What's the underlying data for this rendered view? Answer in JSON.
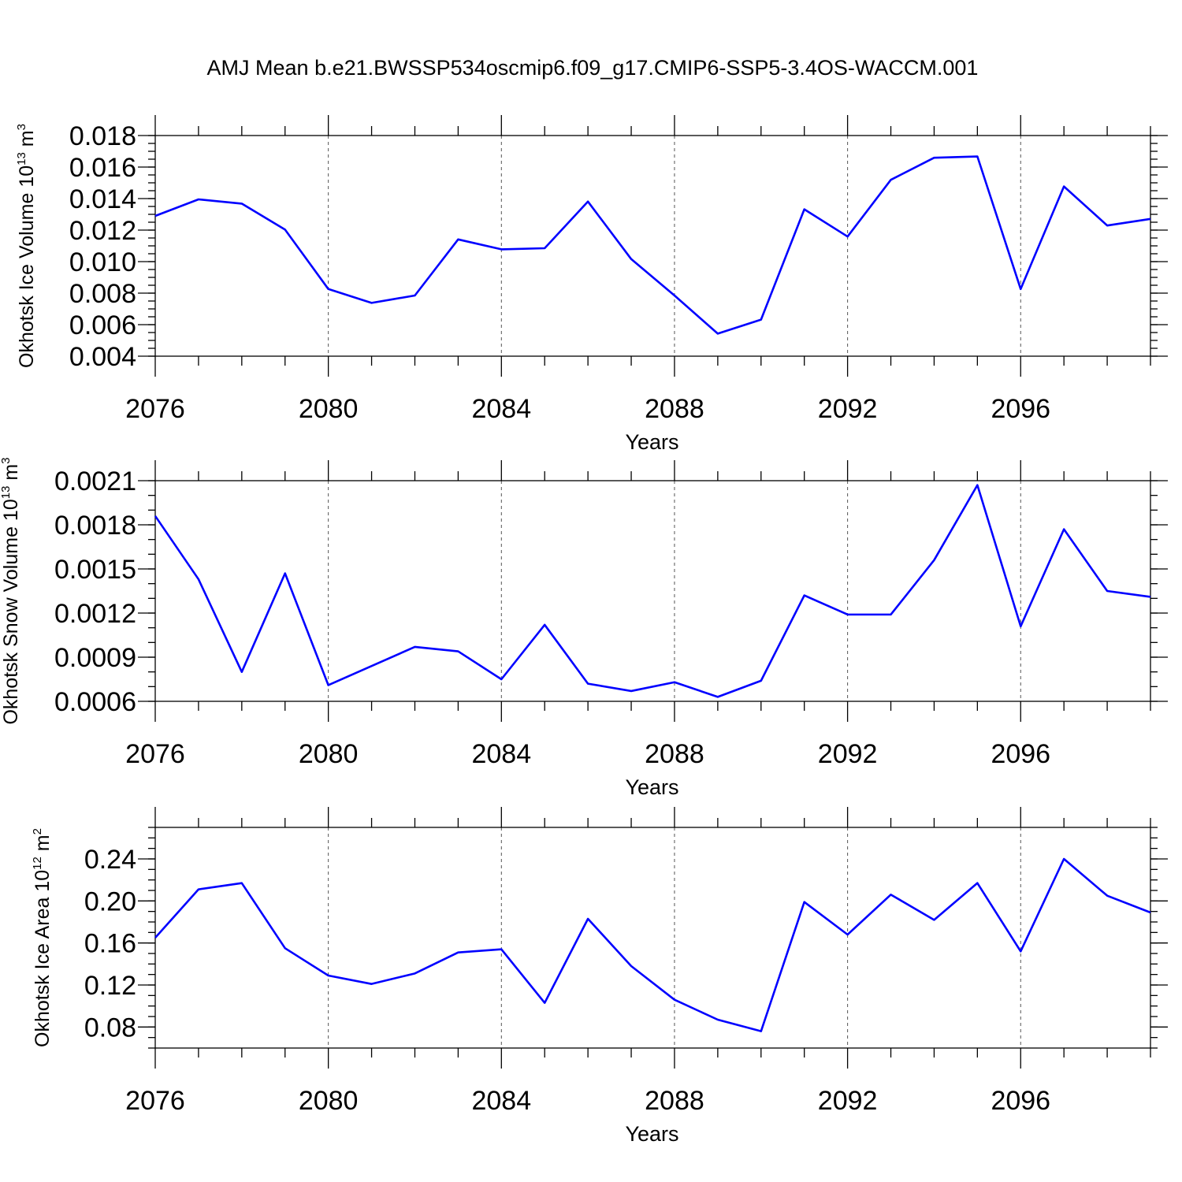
{
  "figure": {
    "title": "AMJ Mean b.e21.BWSSP534oscmip6.f09_g17.CMIP6-SSP5-3.4OS-WACCM.001"
  },
  "chart_data": [
    {
      "type": "line",
      "id": "ice-volume",
      "ylabel": "Okhotsk Ice Volume 10",
      "ylabel_exp": "13",
      "ylabel_unit": " m",
      "ylabel_unit_exp": "3",
      "xlabel": "Years",
      "xlim": [
        2076,
        2099
      ],
      "ylim": [
        0.004,
        0.018
      ],
      "xticks": [
        2076,
        2080,
        2084,
        2088,
        2092,
        2096
      ],
      "xtick_labels": [
        "2076",
        "2080",
        "2084",
        "2088",
        "2092",
        "2096"
      ],
      "yticks": [
        0.004,
        0.006,
        0.008,
        0.01,
        0.012,
        0.014,
        0.016,
        0.018
      ],
      "ytick_labels": [
        "0.004",
        "0.006",
        "0.008",
        "0.010",
        "0.012",
        "0.014",
        "0.016",
        "0.018"
      ],
      "yminor_step": 0.0005,
      "series": [
        {
          "name": "ice volume",
          "color": "#0000ff",
          "x": [
            2076,
            2077,
            2078,
            2079,
            2080,
            2081,
            2082,
            2083,
            2084,
            2085,
            2086,
            2087,
            2088,
            2089,
            2090,
            2091,
            2092,
            2093,
            2094,
            2095,
            2096,
            2097,
            2098,
            2099
          ],
          "y": [
            0.0129,
            0.01395,
            0.01368,
            0.01203,
            0.00826,
            0.00738,
            0.00785,
            0.01141,
            0.01078,
            0.01085,
            0.01381,
            0.01016,
            0.00785,
            0.00543,
            0.00632,
            0.01332,
            0.01159,
            0.01519,
            0.01659,
            0.01667,
            0.00826,
            0.01477,
            0.01229,
            0.01271
          ]
        }
      ]
    },
    {
      "type": "line",
      "id": "snow-volume",
      "ylabel": "Okhotsk Snow Volume 10",
      "ylabel_exp": "13",
      "ylabel_unit": " m",
      "ylabel_unit_exp": "3",
      "xlabel": "Years",
      "xlim": [
        2076,
        2099
      ],
      "ylim": [
        0.0006,
        0.0021
      ],
      "xticks": [
        2076,
        2080,
        2084,
        2088,
        2092,
        2096
      ],
      "xtick_labels": [
        "2076",
        "2080",
        "2084",
        "2088",
        "2092",
        "2096"
      ],
      "yticks": [
        0.0006,
        0.0009,
        0.0012,
        0.0015,
        0.0018,
        0.0021
      ],
      "ytick_labels": [
        "0.0006",
        "0.0009",
        "0.0012",
        "0.0015",
        "0.0018",
        "0.0021"
      ],
      "yminor_step": 0.0001,
      "series": [
        {
          "name": "snow volume",
          "color": "#0000ff",
          "x": [
            2076,
            2077,
            2078,
            2079,
            2080,
            2081,
            2082,
            2083,
            2084,
            2085,
            2086,
            2087,
            2088,
            2089,
            2090,
            2091,
            2092,
            2093,
            2094,
            2095,
            2096,
            2097,
            2098,
            2099
          ],
          "y": [
            0.00186,
            0.00143,
            0.0008,
            0.00147,
            0.00071,
            0.00084,
            0.00097,
            0.00094,
            0.00075,
            0.00112,
            0.00072,
            0.00067,
            0.00073,
            0.00063,
            0.00074,
            0.00132,
            0.00119,
            0.00119,
            0.00156,
            0.00207,
            0.00111,
            0.00177,
            0.00135,
            0.00131
          ]
        }
      ]
    },
    {
      "type": "line",
      "id": "ice-area",
      "ylabel": "Okhotsk Ice Area 10",
      "ylabel_exp": "12",
      "ylabel_unit": " m",
      "ylabel_unit_exp": "2",
      "xlabel": "Years",
      "xlim": [
        2076,
        2099
      ],
      "ylim": [
        0.06,
        0.27
      ],
      "xticks": [
        2076,
        2080,
        2084,
        2088,
        2092,
        2096
      ],
      "xtick_labels": [
        "2076",
        "2080",
        "2084",
        "2088",
        "2092",
        "2096"
      ],
      "yticks": [
        0.08,
        0.12,
        0.16,
        0.2,
        0.24
      ],
      "ytick_labels": [
        "0.08",
        "0.12",
        "0.16",
        "0.20",
        "0.24"
      ],
      "yminor_step": 0.01,
      "series": [
        {
          "name": "ice area",
          "color": "#0000ff",
          "x": [
            2076,
            2077,
            2078,
            2079,
            2080,
            2081,
            2082,
            2083,
            2084,
            2085,
            2086,
            2087,
            2088,
            2089,
            2090,
            2091,
            2092,
            2093,
            2094,
            2095,
            2096,
            2097,
            2098,
            2099
          ],
          "y": [
            0.165,
            0.211,
            0.217,
            0.155,
            0.129,
            0.121,
            0.131,
            0.151,
            0.154,
            0.103,
            0.183,
            0.138,
            0.106,
            0.087,
            0.076,
            0.199,
            0.168,
            0.206,
            0.182,
            0.217,
            0.152,
            0.24,
            0.205,
            0.189
          ]
        }
      ]
    }
  ]
}
